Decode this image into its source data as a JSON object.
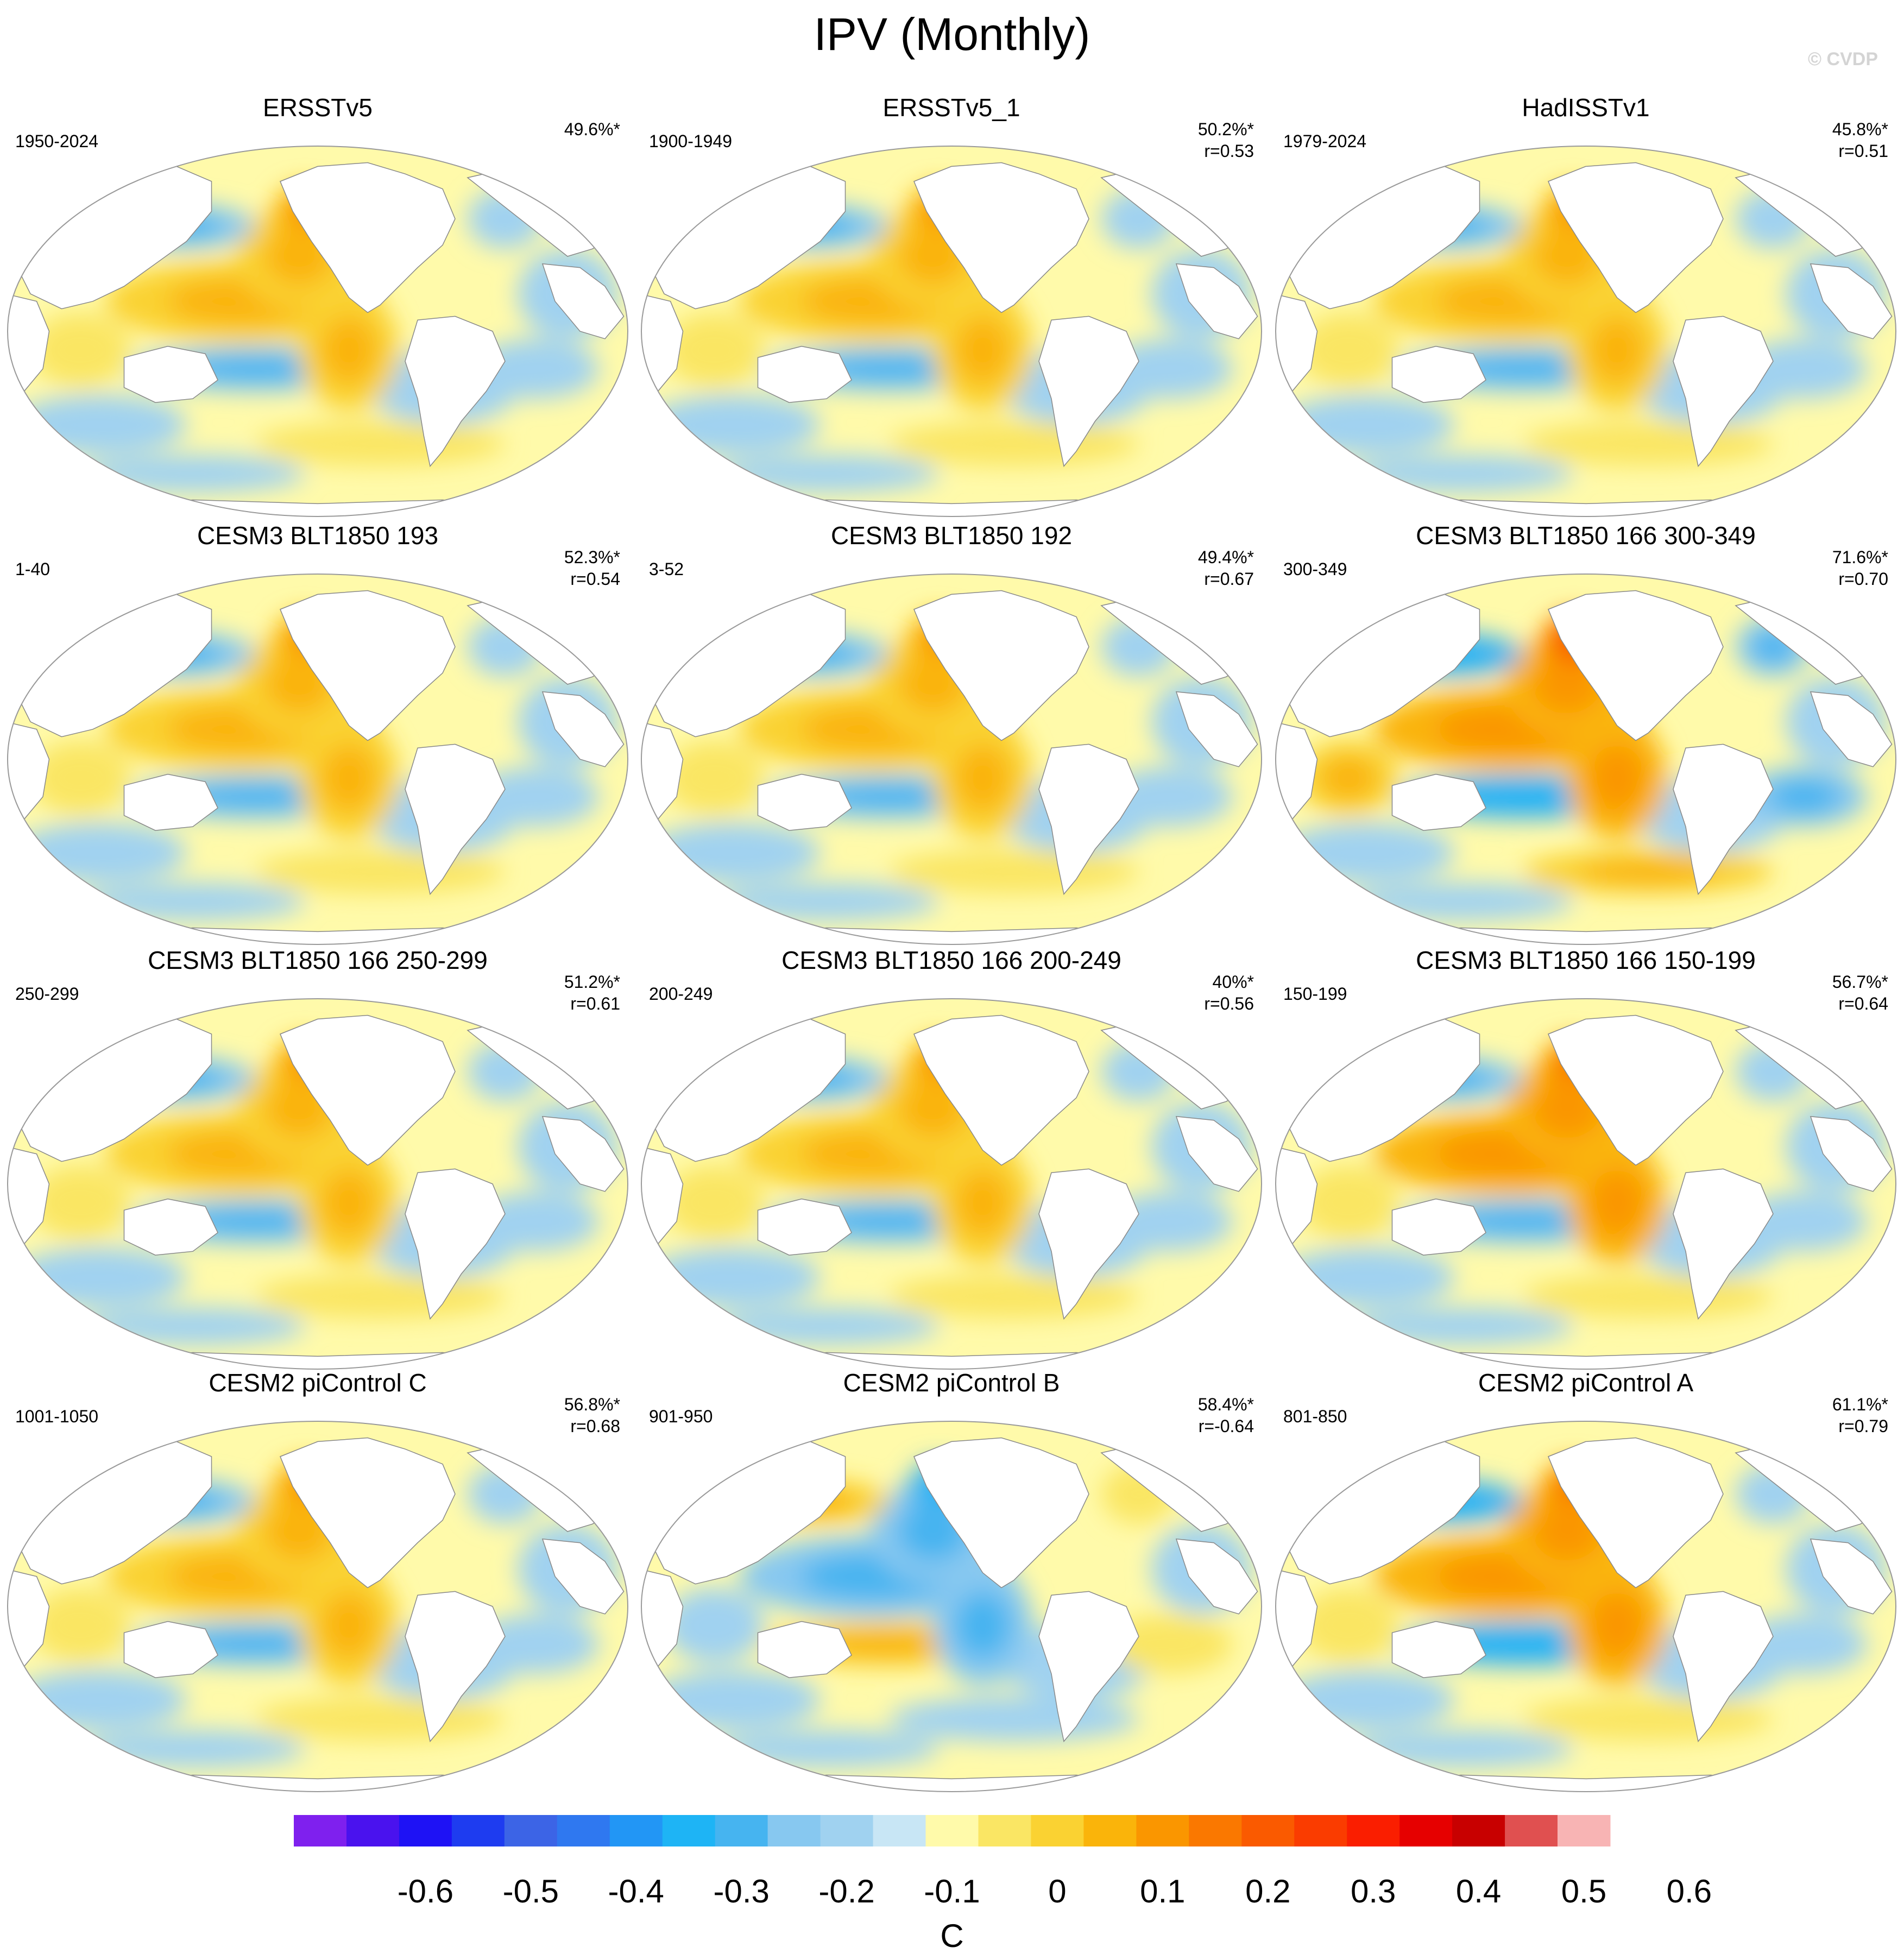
{
  "title": "IPV (Monthly)",
  "copyright": "© CVDP",
  "panels": [
    {
      "title": "ERSSTv5",
      "years": "1950-2024",
      "pct": "49.6%*",
      "r": "",
      "pattern": "positive",
      "strength": 1.0
    },
    {
      "title": "ERSSTv5_1",
      "years": "1900-1949",
      "pct": "50.2%*",
      "r": "r=0.53",
      "pattern": "positive",
      "strength": 1.0
    },
    {
      "title": "HadISSTv1",
      "years": "1979-2024",
      "pct": "45.8%*",
      "r": "r=0.51",
      "pattern": "positive",
      "strength": 0.9
    },
    {
      "title": "CESM3 BLT1850 193",
      "years": "1-40",
      "pct": "52.3%*",
      "r": "r=0.54",
      "pattern": "positive",
      "strength": 1.05
    },
    {
      "title": "CESM3 BLT1850 192",
      "years": "3-52",
      "pct": "49.4%*",
      "r": "r=0.67",
      "pattern": "positive",
      "strength": 1.0
    },
    {
      "title": "CESM3 BLT1850 166 300-349",
      "years": "300-349",
      "pct": "71.6%*",
      "r": "r=0.70",
      "pattern": "positive",
      "strength": 1.6
    },
    {
      "title": "CESM3 BLT1850 166 250-299",
      "years": "250-299",
      "pct": "51.2%*",
      "r": "r=0.61",
      "pattern": "positive",
      "strength": 1.15
    },
    {
      "title": "CESM3 BLT1850 166 200-249",
      "years": "200-249",
      "pct": "40%*",
      "r": "r=0.56",
      "pattern": "positive",
      "strength": 0.95
    },
    {
      "title": "CESM3 BLT1850 166 150-199",
      "years": "150-199",
      "pct": "56.7%*",
      "r": "r=0.64",
      "pattern": "positive",
      "strength": 1.25
    },
    {
      "title": "CESM2 piControl C",
      "years": "1001-1050",
      "pct": "56.8%*",
      "r": "r=0.68",
      "pattern": "positive",
      "strength": 1.15
    },
    {
      "title": "CESM2 piControl B",
      "years": "901-950",
      "pct": "58.4%*",
      "r": "r=-0.64",
      "pattern": "negative",
      "strength": 1.1
    },
    {
      "title": "CESM2 piControl A",
      "years": "801-850",
      "pct": "61.1%*",
      "r": "r=0.79",
      "pattern": "positive",
      "strength": 1.35
    }
  ],
  "colorbar": {
    "colors": [
      "#7f20ee",
      "#4a12ee",
      "#1e12f5",
      "#1e3cf0",
      "#3c64e6",
      "#2f78f0",
      "#2296f5",
      "#1eb4f5",
      "#46b4f0",
      "#87c8f0",
      "#a0d2f0",
      "#c8e6f5",
      "#fffaaa",
      "#fae664",
      "#fad232",
      "#fab40a",
      "#fa9600",
      "#fa7800",
      "#fa5a00",
      "#fa3c00",
      "#fa1e00",
      "#e60000",
      "#c80000",
      "#e05050",
      "#f8b4b4"
    ],
    "tick_labels": [
      "-0.6",
      "-0.5",
      "-0.4",
      "-0.3",
      "-0.2",
      "-0.1",
      "0",
      "0.1",
      "0.2",
      "0.3",
      "0.4",
      "0.5",
      "0.6"
    ],
    "units": "C"
  }
}
